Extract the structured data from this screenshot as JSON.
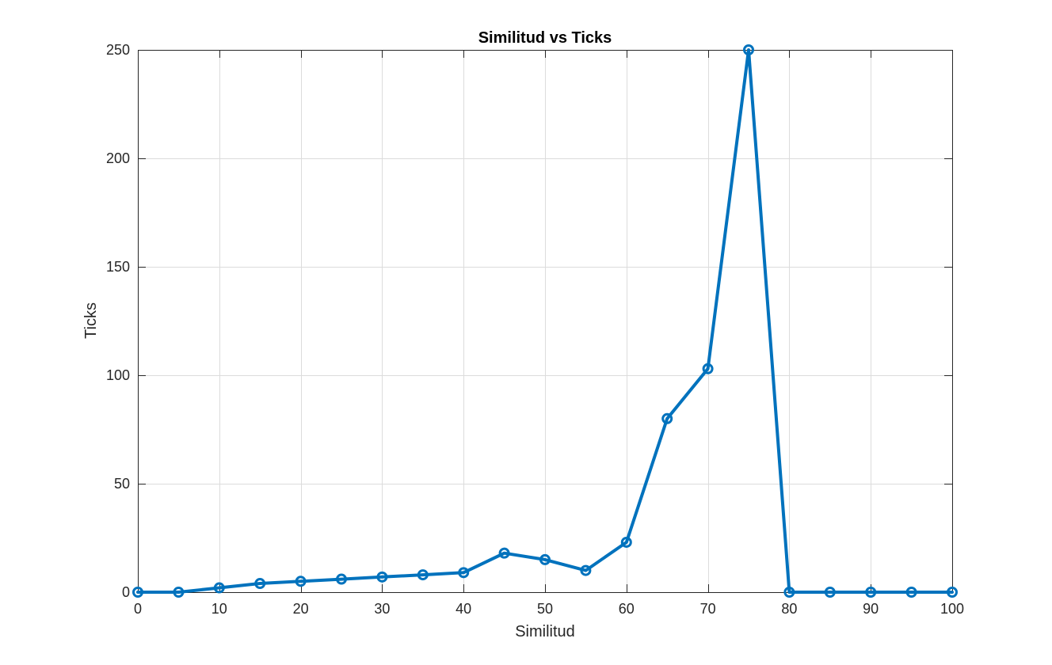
{
  "chart_data": {
    "type": "line",
    "title": "Similitud vs Ticks",
    "xlabel": "Similitud",
    "ylabel": "Ticks",
    "xlim": [
      0,
      100
    ],
    "ylim": [
      0,
      250
    ],
    "xticks": [
      0,
      10,
      20,
      30,
      40,
      50,
      60,
      70,
      80,
      90,
      100
    ],
    "yticks": [
      0,
      50,
      100,
      150,
      200,
      250
    ],
    "xtick_labels": [
      "0",
      "10",
      "20",
      "30",
      "40",
      "50",
      "60",
      "70",
      "80",
      "90",
      "100"
    ],
    "ytick_labels": [
      "0",
      "50",
      "100",
      "150",
      "200",
      "250"
    ],
    "grid": true,
    "legend": "none",
    "marker": "circle",
    "color": "#0072BD",
    "x": [
      0,
      5,
      10,
      15,
      20,
      25,
      30,
      35,
      40,
      45,
      50,
      55,
      60,
      65,
      70,
      75,
      80,
      85,
      90,
      95,
      100
    ],
    "series": [
      {
        "values": [
          0,
          0,
          2,
          4,
          5,
          6,
          7,
          8,
          9,
          18,
          15,
          10,
          23,
          80,
          103,
          250,
          0,
          0,
          0,
          0,
          0
        ]
      }
    ]
  }
}
